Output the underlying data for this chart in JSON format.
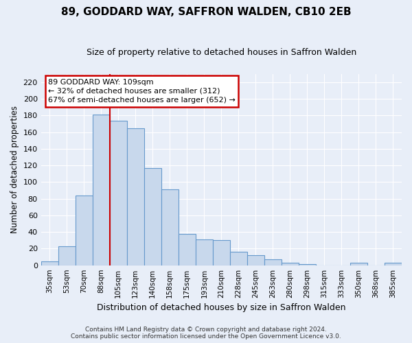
{
  "title": "89, GODDARD WAY, SAFFRON WALDEN, CB10 2EB",
  "subtitle": "Size of property relative to detached houses in Saffron Walden",
  "xlabel": "Distribution of detached houses by size in Saffron Walden",
  "ylabel": "Number of detached properties",
  "categories": [
    "35sqm",
    "53sqm",
    "70sqm",
    "88sqm",
    "105sqm",
    "123sqm",
    "140sqm",
    "158sqm",
    "175sqm",
    "193sqm",
    "210sqm",
    "228sqm",
    "245sqm",
    "263sqm",
    "280sqm",
    "298sqm",
    "315sqm",
    "333sqm",
    "350sqm",
    "368sqm",
    "385sqm"
  ],
  "values": [
    5,
    23,
    84,
    181,
    174,
    165,
    117,
    91,
    38,
    31,
    30,
    16,
    12,
    7,
    3,
    1,
    0,
    0,
    3,
    0,
    3
  ],
  "bar_color": "#c8d8ec",
  "bar_edgecolor": "#6699cc",
  "vline_color": "#cc0000",
  "vline_x_pos": 3.5,
  "ylim": [
    0,
    230
  ],
  "yticks": [
    0,
    20,
    40,
    60,
    80,
    100,
    120,
    140,
    160,
    180,
    200,
    220
  ],
  "annotation_title": "89 GODDARD WAY: 109sqm",
  "annotation_line1": "← 32% of detached houses are smaller (312)",
  "annotation_line2": "67% of semi-detached houses are larger (652) →",
  "annotation_box_facecolor": "#ffffff",
  "annotation_box_edgecolor": "#cc0000",
  "footer1": "Contains HM Land Registry data © Crown copyright and database right 2024.",
  "footer2": "Contains public sector information licensed under the Open Government Licence v3.0.",
  "background_color": "#e8eef8",
  "grid_color": "#ffffff",
  "title_fontsize": 11,
  "subtitle_fontsize": 9,
  "ylabel_fontsize": 8.5,
  "xlabel_fontsize": 9,
  "tick_fontsize": 8,
  "xtick_fontsize": 7.5,
  "annotation_fontsize": 8,
  "footer_fontsize": 6.5
}
